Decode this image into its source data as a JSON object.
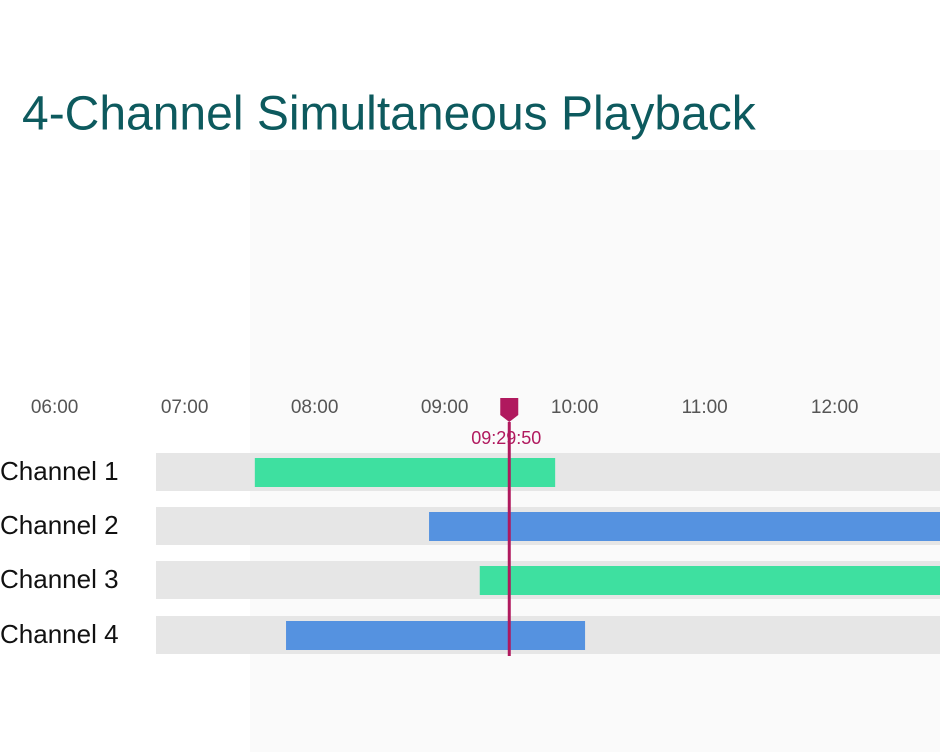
{
  "chart_data": {
    "type": "timeline",
    "title": "4-Channel Simultaneous Playback",
    "xlim": [
      5.58,
      12.81
    ],
    "xticks": [
      {
        "value": 6,
        "label": "06:00"
      },
      {
        "value": 7,
        "label": "07:00"
      },
      {
        "value": 8,
        "label": "08:00"
      },
      {
        "value": 9,
        "label": "09:00"
      },
      {
        "value": 10,
        "label": "10:00"
      },
      {
        "value": 11,
        "label": "11:00"
      },
      {
        "value": 12,
        "label": "12:00"
      }
    ],
    "cursor": {
      "value": 9.497,
      "label": "09:29:50",
      "color": "#b0195e"
    },
    "series": [
      {
        "name": "Channel 1",
        "color": "#3ee0a0",
        "start": 7.54,
        "end": 9.85
      },
      {
        "name": "Channel 2",
        "color": "#5592e0",
        "start": 8.88,
        "end": 12.81
      },
      {
        "name": "Channel 3",
        "color": "#3ee0a0",
        "start": 9.27,
        "end": 12.81
      },
      {
        "name": "Channel 4",
        "color": "#5592e0",
        "start": 7.78,
        "end": 10.08
      }
    ]
  }
}
